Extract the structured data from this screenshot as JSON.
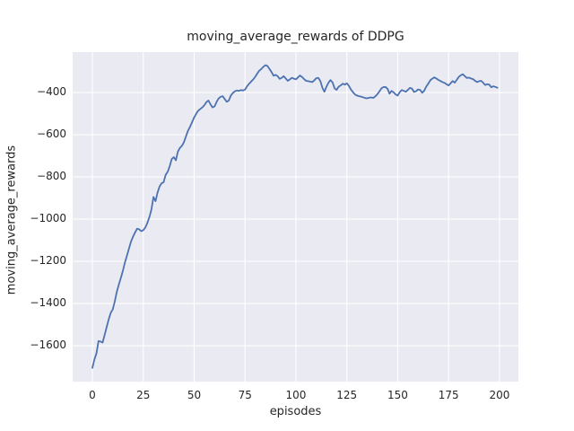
{
  "chart_data": {
    "type": "line",
    "title": "moving_average_rewards of DDPG",
    "xlabel": "episodes",
    "ylabel": "moving_average_rewards",
    "grid": true,
    "legend": false,
    "xlim": [
      -9.7,
      209.3
    ],
    "ylim": [
      -1770,
      -208
    ],
    "xticks": [
      0,
      25,
      50,
      75,
      100,
      125,
      150,
      175,
      200
    ],
    "xtick_labels": [
      "0",
      "25",
      "50",
      "75",
      "100",
      "125",
      "150",
      "175",
      "200"
    ],
    "yticks": [
      -400,
      -600,
      -800,
      -1000,
      -1200,
      -1400,
      -1600
    ],
    "ytick_labels": [
      "−400",
      "−600",
      "−800",
      "−1000",
      "−1200",
      "−1400",
      "−1600"
    ],
    "style": {
      "axes_background": "#EAEAF2",
      "figure_background": "#FFFFFF",
      "grid_color": "#FFFFFF",
      "line_color": "#4C72B0",
      "text_color": "#262626"
    },
    "series": [
      {
        "name": "DDPG moving_average_rewards",
        "x_start": 0,
        "x_step": 1,
        "y": [
          -1705,
          -1665,
          -1635,
          -1578,
          -1580,
          -1585,
          -1550,
          -1512,
          -1475,
          -1445,
          -1428,
          -1390,
          -1345,
          -1310,
          -1278,
          -1243,
          -1205,
          -1172,
          -1138,
          -1106,
          -1082,
          -1062,
          -1045,
          -1048,
          -1057,
          -1052,
          -1040,
          -1018,
          -990,
          -955,
          -895,
          -915,
          -875,
          -845,
          -830,
          -825,
          -790,
          -775,
          -748,
          -715,
          -706,
          -721,
          -680,
          -662,
          -652,
          -635,
          -607,
          -580,
          -562,
          -540,
          -518,
          -500,
          -486,
          -478,
          -470,
          -460,
          -445,
          -438,
          -455,
          -470,
          -466,
          -445,
          -428,
          -420,
          -417,
          -430,
          -444,
          -438,
          -415,
          -402,
          -394,
          -390,
          -392,
          -388,
          -390,
          -386,
          -370,
          -358,
          -348,
          -338,
          -325,
          -310,
          -296,
          -288,
          -278,
          -270,
          -274,
          -288,
          -302,
          -320,
          -316,
          -322,
          -335,
          -330,
          -322,
          -333,
          -344,
          -338,
          -330,
          -334,
          -337,
          -328,
          -319,
          -326,
          -336,
          -344,
          -346,
          -348,
          -350,
          -342,
          -332,
          -330,
          -345,
          -378,
          -396,
          -372,
          -353,
          -341,
          -352,
          -380,
          -387,
          -372,
          -366,
          -358,
          -362,
          -356,
          -368,
          -385,
          -398,
          -409,
          -414,
          -417,
          -419,
          -422,
          -426,
          -427,
          -424,
          -423,
          -425,
          -418,
          -408,
          -395,
          -380,
          -374,
          -373,
          -382,
          -405,
          -392,
          -399,
          -409,
          -414,
          -398,
          -388,
          -392,
          -396,
          -387,
          -378,
          -381,
          -397,
          -394,
          -385,
          -387,
          -401,
          -392,
          -372,
          -358,
          -342,
          -334,
          -328,
          -333,
          -340,
          -345,
          -350,
          -354,
          -361,
          -366,
          -356,
          -345,
          -353,
          -340,
          -326,
          -318,
          -313,
          -322,
          -331,
          -329,
          -333,
          -336,
          -344,
          -350,
          -346,
          -344,
          -353,
          -364,
          -360,
          -362,
          -375,
          -370,
          -373,
          -377
        ]
      }
    ]
  }
}
